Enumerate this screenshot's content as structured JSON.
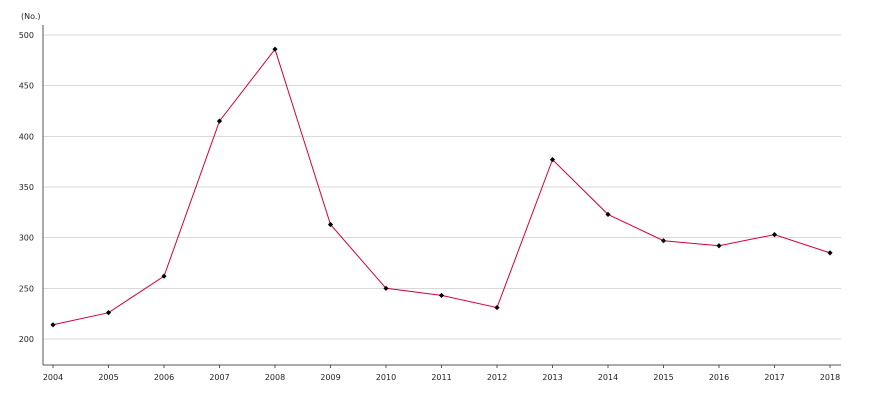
{
  "chart_data": {
    "type": "line",
    "title": "",
    "xlabel": "",
    "ylabel": "(No.)",
    "categories": [
      "2004",
      "2005",
      "2006",
      "2007",
      "2008",
      "2009",
      "2010",
      "2011",
      "2012",
      "2013",
      "2014",
      "2015",
      "2016",
      "2017",
      "2018"
    ],
    "series": [
      {
        "values": [
          214,
          226,
          262,
          415,
          486,
          313,
          250,
          243,
          231,
          377,
          323,
          297,
          292,
          303,
          285
        ],
        "color": "#d6003b",
        "marker_color": "#000000",
        "marker": "diamond"
      }
    ],
    "ylim": [
      175,
      510
    ],
    "yticks": [
      200,
      250,
      300,
      350,
      400,
      450,
      500
    ],
    "grid": "horizontal",
    "legend": "none"
  }
}
